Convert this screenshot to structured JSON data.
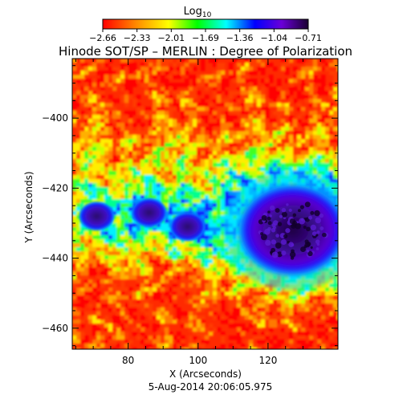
{
  "colorbar": {
    "label_main": "Log",
    "label_sub": "10",
    "tick_labels": [
      "−2.66",
      "−2.33",
      "−2.01",
      "−1.69",
      "−1.36",
      "−1.04",
      "−0.71"
    ],
    "colors": [
      "#ff0000",
      "#ff8800",
      "#ffff00",
      "#00ff00",
      "#00ffff",
      "#0000ff",
      "#6a00d8",
      "#1a0030"
    ]
  },
  "figure": {
    "title": "Hinode SOT/SP – MERLIN : Degree of Polarization",
    "xlabel": "X (Arcseconds)",
    "ylabel": "Y (Arcseconds)",
    "timestamp": "5-Aug-2014 20:06:05.975"
  },
  "axes": {
    "x_ticks": [
      {
        "value": 80,
        "label": "80"
      },
      {
        "value": 100,
        "label": "100"
      },
      {
        "value": 120,
        "label": "120"
      }
    ],
    "y_ticks": [
      {
        "value": -400,
        "label": "−400"
      },
      {
        "value": -420,
        "label": "−420"
      },
      {
        "value": -440,
        "label": "−440"
      },
      {
        "value": -460,
        "label": "−460"
      }
    ],
    "xlim": [
      64,
      140
    ],
    "ylim": [
      -466,
      -383
    ]
  },
  "image_features": {
    "sunspot": {
      "x": 127,
      "y": -432,
      "rx": 13,
      "ry": 11
    },
    "pores": [
      {
        "x": 71,
        "y": -428
      },
      {
        "x": 86,
        "y": -427
      },
      {
        "x": 97,
        "y": -431
      }
    ]
  }
}
